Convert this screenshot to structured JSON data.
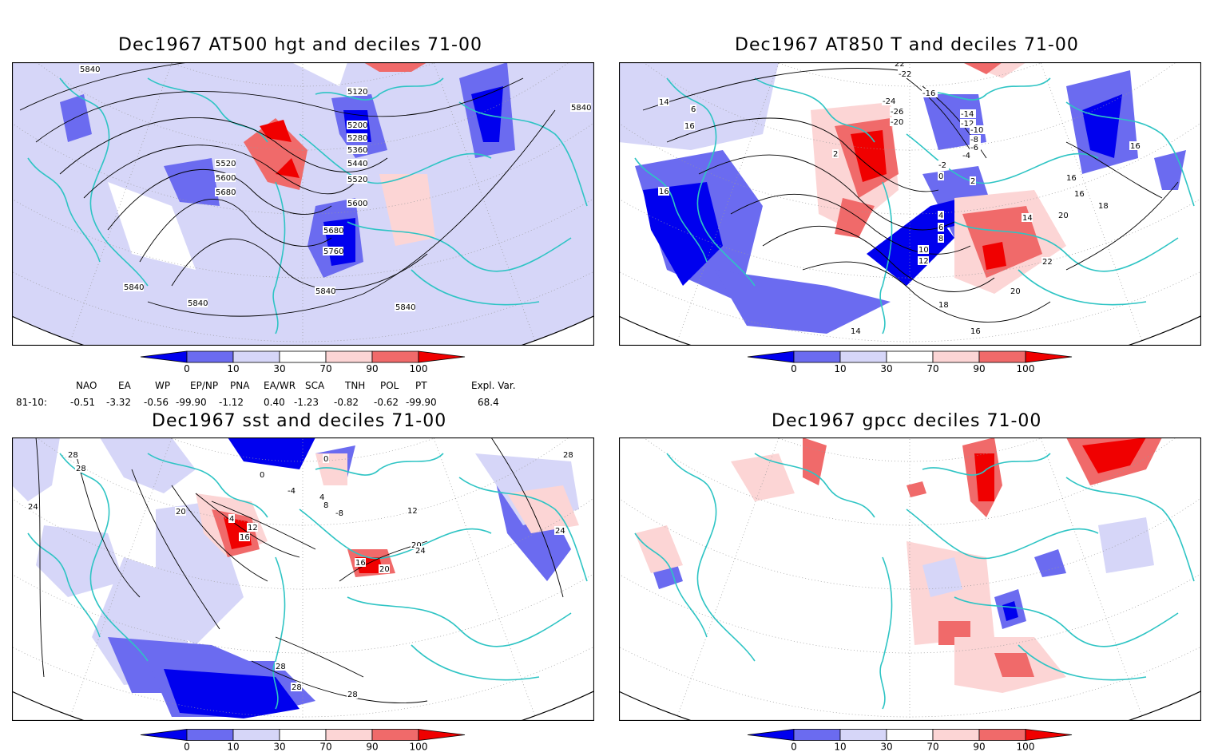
{
  "panels": [
    {
      "id": "p1",
      "title": "Dec1967 AT500 hgt and deciles 71-00",
      "labels": [
        "5840",
        "5840",
        "5840",
        "5840",
        "5840",
        "5840",
        "5120",
        "5200",
        "5280",
        "5360",
        "5440",
        "5520",
        "5520",
        "5600",
        "5680",
        "5600",
        "5680",
        "5760"
      ]
    },
    {
      "id": "p2",
      "title": "Dec1967 AT850 T and deciles 71-00",
      "labels": [
        "22",
        "-22",
        "-16",
        "-24",
        "-26",
        "-20",
        "-14",
        "-12",
        "-10",
        "-8",
        "-6",
        "-4",
        "-2",
        "0",
        "2",
        "2",
        "4",
        "6",
        "8",
        "10",
        "12",
        "14",
        "16",
        "16",
        "16",
        "18",
        "20",
        "22",
        "20",
        "18",
        "16",
        "14",
        "14",
        "16",
        "6",
        "16"
      ]
    },
    {
      "id": "p3",
      "title": "Dec1967 sst and deciles 71-00",
      "labels": [
        "28",
        "28",
        "24",
        "20",
        "4",
        "12",
        "16",
        "0",
        "0",
        "-4",
        "4",
        "8",
        "-8",
        "16",
        "20",
        "20",
        "24",
        "28",
        "28",
        "28",
        "28",
        "24",
        "12"
      ]
    },
    {
      "id": "p4",
      "title": "Dec1967 gpcc deciles 71-00",
      "labels": []
    }
  ],
  "colorbar": {
    "ticks": [
      "0",
      "10",
      "30",
      "70",
      "90",
      "100"
    ],
    "colors": [
      "#0000ee",
      "#6b6bf0",
      "#d6d6f8",
      "#ffffff",
      "#fcd5d5",
      "#f06a6a",
      "#f00000"
    ]
  },
  "teleconnections": {
    "headers": [
      "NAO",
      "EA",
      "WP",
      "EP/NP",
      "PNA",
      "EA/WR",
      "SCA",
      "TNH",
      "POL",
      "PT",
      "Expl. Var."
    ],
    "row_label": "81-10:",
    "values": [
      "-0.51",
      "-3.32",
      "-0.56",
      "-99.90",
      "-1.12",
      "0.40",
      "-1.23",
      "-0.82",
      "-0.62",
      "-99.90",
      "68.4"
    ]
  },
  "colors": {
    "coast": "#2ec4c4",
    "contour": "#000000",
    "frame": "#000000"
  }
}
